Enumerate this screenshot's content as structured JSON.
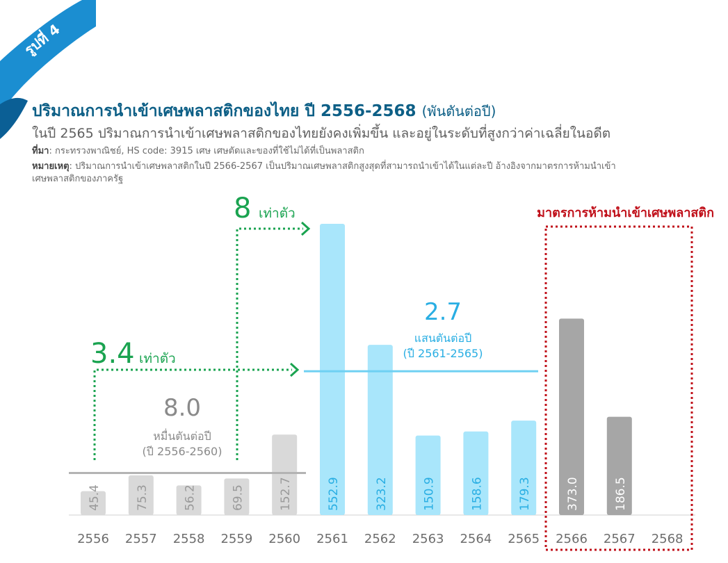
{
  "figure": {
    "badge": "รูปที่ 4",
    "title": "ปริมาณการนำเข้าเศษพลาสติกของไทย ปี 2556-2568",
    "title_unit": "(พันตันต่อปี)",
    "subtitle": "ในปี 2565 ปริมาณการนำเข้าเศษพลาสติกของไทยยังคงเพิ่มขึ้น และอยู่ในระดับที่สูงกว่าค่าเฉลี่ยในอดีต",
    "source_label": "ที่มา",
    "source_text": ": กระทรวงพาณิชย์, HS code: 3915 เศษ เศษตัดและของที่ใช้ไม่ได้ที่เป็นพลาสติก",
    "note_label": "หมายเหตุ",
    "note_text_1": ": ปริมาณการนำเข้าเศษพลาสติกในปี 2566-2567 เป็นปริมาณเศษพลาสติกสูงสุดที่สามารถนำเข้าได้ในแต่ละปี อ้างอิงจากมาตรการห้ามนำเข้า",
    "note_text_2": "เศษพลาสติกของภาครัฐ"
  },
  "chart_data": {
    "type": "bar",
    "categories": [
      "2556",
      "2557",
      "2558",
      "2559",
      "2560",
      "2561",
      "2562",
      "2563",
      "2564",
      "2565",
      "2566",
      "2567",
      "2568"
    ],
    "values": [
      45.4,
      75.3,
      56.2,
      69.5,
      152.7,
      552.9,
      323.2,
      150.9,
      158.6,
      179.3,
      373.0,
      186.5,
      null
    ],
    "value_labels": [
      "45.4",
      "75.3",
      "56.2",
      "69.5",
      "152.7",
      "552.9",
      "323.2",
      "150.9",
      "158.6",
      "179.3",
      "373.0",
      "186.5",
      ""
    ],
    "groups": [
      "early",
      "early",
      "early",
      "early",
      "early",
      "mid",
      "mid",
      "mid",
      "mid",
      "mid",
      "ban",
      "ban",
      "ban"
    ],
    "colors": {
      "early": "#d9d9d9",
      "early_label": "#9a9a9a",
      "mid": "#a9e6fb",
      "mid_label": "#29aee3",
      "ban": "#a6a6a6",
      "ban_label": "#ffffff",
      "avg_early_line": "#b3b3b3",
      "avg_mid_line": "#6fd0f2",
      "arrow": "#1aa350",
      "ban_box": "#c0101a",
      "axis_text": "#6d6d6d",
      "title": "#0d5f86",
      "badge": "#1b8ed1"
    },
    "averages": [
      {
        "value_text": "8.0",
        "unit": "หมื่นตันต่อปี",
        "period": "(ปี 2556-2560)"
      },
      {
        "value_text": "2.7",
        "unit": "แสนตันต่อปี",
        "period": "(ปี 2561-2565)"
      }
    ],
    "multipliers": [
      {
        "value_text": "3.4",
        "unit": "เท่าตัว"
      },
      {
        "value_text": "8",
        "unit": "เท่าตัว"
      }
    ],
    "ban_label": "มาตรการห้ามนำเข้าเศษพลาสติก",
    "ylim": [
      0,
      600
    ],
    "grid": false,
    "legend": "none"
  }
}
